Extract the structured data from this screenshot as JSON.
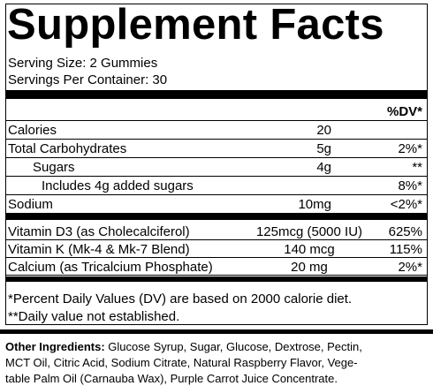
{
  "header": {
    "title": "Supplement Facts",
    "serving_size": "Serving Size: 2 Gummies",
    "servings_per_container": "Servings Per Container: 30"
  },
  "table": {
    "dv_header": "%DV*",
    "rows": [
      [
        "Calories",
        "20",
        ""
      ],
      [
        "Total Carbohydrates",
        "5g",
        "2%*"
      ],
      [
        "Sugars",
        "4g",
        "**"
      ],
      [
        "Includes 4g added sugars",
        "",
        "8%*"
      ],
      [
        "Sodium",
        "10mg",
        "<2%*"
      ]
    ],
    "vitamin_rows": [
      [
        "Vitamin D3 (as Cholecalciferol)",
        "125mcg (5000 IU)",
        "625%"
      ],
      [
        "Vitamin K (Mk-4 & Mk-7 Blend)",
        "140 mcg",
        "115%"
      ],
      [
        "Calcium (as Tricalcium Phosphate)",
        "20 mg",
        "2%*"
      ]
    ]
  },
  "footnotes": [
    "*Percent Daily Values (DV) are based on 2000 calorie diet.",
    "**Daily value not established."
  ],
  "other_ingredients": {
    "label": "Other Ingredients:",
    "lines": [
      " Glucose Syrup, Sugar, Glucose, Dextrose, Pectin,",
      "MCT Oil, Citric Acid, Sodium Citrate, Natural Raspberry Flavor, Vege-",
      "table Palm Oil (Carnauba Wax), Purple Carrot Juice Concentrate."
    ]
  }
}
